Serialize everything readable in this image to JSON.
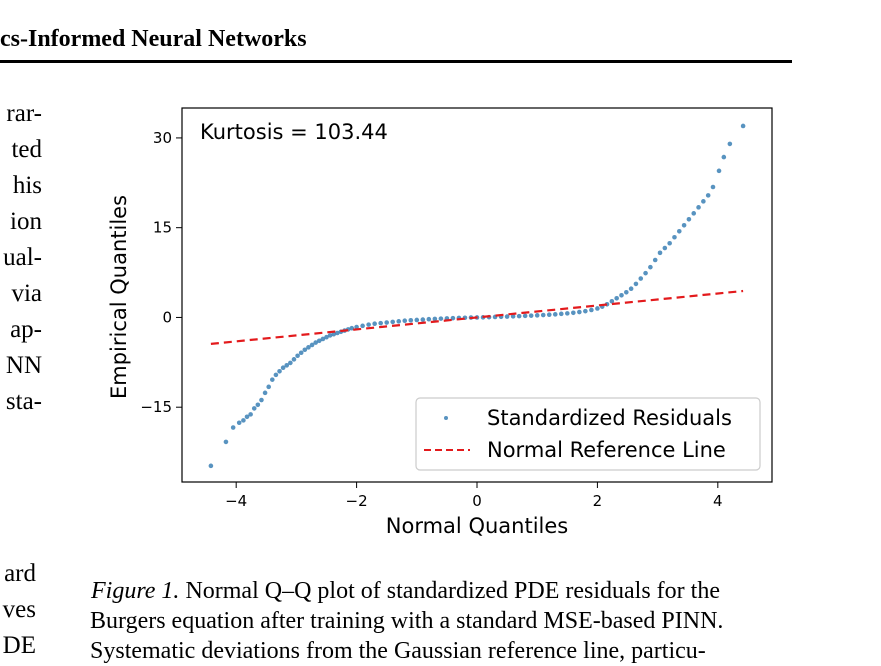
{
  "header": {
    "running_title": "cs-Informed Neural Networks"
  },
  "left_column_top": [
    "rar-",
    "ted",
    "his",
    "ion",
    "ual-",
    "via",
    "ap-",
    "NN",
    "sta-"
  ],
  "left_column_bottom": [
    "ard",
    "ves",
    "DE"
  ],
  "caption": {
    "label": "Figure 1.",
    "line1": "Normal Q–Q plot of standardized PDE residuals for the",
    "line2": "Burgers equation after training with a standard MSE-based PINN.",
    "line3": "Systematic deviations from the Gaussian reference line, particu-"
  },
  "colors": {
    "residuals": "#3b80b5",
    "reference": "#e31a1c"
  },
  "chart_data": {
    "type": "scatter",
    "title": "",
    "annotation": "Kurtosis = 103.44",
    "xlabel": "Normal Quantiles",
    "ylabel": "Empirical Quantiles",
    "xlim": [
      -4.9,
      4.9
    ],
    "ylim": [
      -27.5,
      35
    ],
    "xticks": [
      -4,
      -2,
      0,
      2,
      4
    ],
    "xtick_labels": [
      "−4",
      "−2",
      "0",
      "2",
      "4"
    ],
    "yticks": [
      -15,
      0,
      15,
      30
    ],
    "ytick_labels": [
      "−15",
      "0",
      "15",
      "30"
    ],
    "grid": false,
    "legend_position": "lower-right",
    "legend": [
      "Standardized Residuals",
      "Normal Reference Line"
    ],
    "series": [
      {
        "name": "Standardized Residuals",
        "kind": "points",
        "x": [
          -4.42,
          -4.17,
          -4.05,
          -3.95,
          -3.88,
          -3.82,
          -3.76,
          -3.7,
          -3.64,
          -3.58,
          -3.52,
          -3.46,
          -3.4,
          -3.34,
          -3.28,
          -3.22,
          -3.16,
          -3.1,
          -3.04,
          -2.98,
          -2.92,
          -2.86,
          -2.8,
          -2.74,
          -2.68,
          -2.62,
          -2.56,
          -2.5,
          -2.44,
          -2.38,
          -2.32,
          -2.26,
          -2.2,
          -2.14,
          -2.08,
          -2.0,
          -1.9,
          -1.8,
          -1.7,
          -1.6,
          -1.5,
          -1.4,
          -1.3,
          -1.2,
          -1.1,
          -1.0,
          -0.9,
          -0.8,
          -0.7,
          -0.6,
          -0.5,
          -0.4,
          -0.3,
          -0.2,
          -0.1,
          0.0,
          0.1,
          0.2,
          0.3,
          0.4,
          0.5,
          0.6,
          0.7,
          0.8,
          0.9,
          1.0,
          1.1,
          1.2,
          1.3,
          1.4,
          1.5,
          1.6,
          1.7,
          1.8,
          1.9,
          2.0,
          2.08,
          2.16,
          2.24,
          2.32,
          2.4,
          2.48,
          2.56,
          2.64,
          2.72,
          2.8,
          2.88,
          2.96,
          3.04,
          3.12,
          3.2,
          3.28,
          3.36,
          3.44,
          3.52,
          3.6,
          3.68,
          3.76,
          3.84,
          3.92,
          4.02,
          4.1,
          4.2,
          4.42
        ],
        "y": [
          -24.8,
          -20.8,
          -18.4,
          -17.6,
          -17.2,
          -16.6,
          -16.2,
          -15.2,
          -14.6,
          -13.8,
          -12.6,
          -11.6,
          -10.4,
          -9.6,
          -9.0,
          -8.4,
          -8.0,
          -7.6,
          -7.0,
          -6.4,
          -5.9,
          -5.4,
          -5.0,
          -4.6,
          -4.2,
          -3.9,
          -3.6,
          -3.3,
          -3.0,
          -2.8,
          -2.6,
          -2.4,
          -2.2,
          -2.0,
          -1.8,
          -1.6,
          -1.4,
          -1.2,
          -1.05,
          -0.95,
          -0.85,
          -0.75,
          -0.65,
          -0.55,
          -0.48,
          -0.42,
          -0.36,
          -0.3,
          -0.25,
          -0.2,
          -0.16,
          -0.12,
          -0.08,
          -0.05,
          -0.02,
          0.0,
          0.02,
          0.05,
          0.08,
          0.11,
          0.14,
          0.18,
          0.22,
          0.26,
          0.3,
          0.35,
          0.4,
          0.46,
          0.52,
          0.6,
          0.68,
          0.78,
          0.9,
          1.05,
          1.25,
          1.5,
          1.8,
          2.2,
          2.7,
          3.2,
          3.7,
          4.2,
          4.8,
          5.6,
          6.5,
          7.4,
          8.4,
          9.6,
          10.8,
          11.6,
          12.4,
          13.4,
          14.4,
          15.4,
          16.4,
          17.4,
          18.4,
          19.4,
          20.4,
          21.8,
          24.5,
          26.8,
          29.0,
          32.0
        ]
      },
      {
        "name": "Normal Reference Line",
        "kind": "line",
        "x": [
          -4.42,
          4.42
        ],
        "y": [
          -4.42,
          4.42
        ]
      }
    ]
  }
}
